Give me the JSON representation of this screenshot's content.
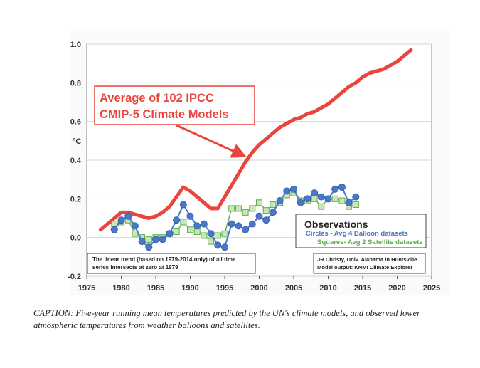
{
  "chart_data": {
    "type": "line",
    "ylabel": "°C",
    "xlim": [
      1975,
      2025
    ],
    "ylim": [
      -0.2,
      1.0
    ],
    "x_ticks": [
      1975,
      1980,
      1985,
      1990,
      1995,
      2000,
      2005,
      2010,
      2015,
      2020,
      2025
    ],
    "y_ticks": [
      -0.2,
      0.0,
      0.2,
      0.4,
      0.6,
      0.8,
      1.0
    ],
    "y_tick_labels": [
      "-0.2",
      "0.0",
      "0.2",
      "0.4",
      "0.6",
      "0.8",
      "1.0"
    ],
    "grid": true,
    "series": [
      {
        "name": "Average of 102 IPCC CMIP-5 Climate Models",
        "color": "#e8453c",
        "x": [
          1977,
          1978,
          1979,
          1980,
          1981,
          1982,
          1983,
          1984,
          1985,
          1986,
          1987,
          1988,
          1989,
          1990,
          1991,
          1992,
          1993,
          1994,
          1995,
          1996,
          1997,
          1998,
          1999,
          2000,
          2001,
          2002,
          2003,
          2004,
          2005,
          2006,
          2007,
          2008,
          2009,
          2010,
          2011,
          2012,
          2013,
          2014,
          2015,
          2016,
          2017,
          2018,
          2019,
          2020,
          2021,
          2022
        ],
        "values": [
          0.04,
          0.07,
          0.1,
          0.13,
          0.13,
          0.12,
          0.11,
          0.1,
          0.11,
          0.13,
          0.16,
          0.21,
          0.26,
          0.24,
          0.21,
          0.18,
          0.15,
          0.15,
          0.21,
          0.27,
          0.33,
          0.39,
          0.44,
          0.48,
          0.51,
          0.54,
          0.57,
          0.59,
          0.61,
          0.62,
          0.64,
          0.65,
          0.67,
          0.69,
          0.72,
          0.75,
          0.78,
          0.8,
          0.83,
          0.85,
          0.86,
          0.87,
          0.89,
          0.91,
          0.94,
          0.97
        ]
      },
      {
        "name": "Circles - Avg 4 Balloon datasets",
        "color": "#4a78c8",
        "x": [
          1979,
          1980,
          1981,
          1982,
          1983,
          1984,
          1985,
          1986,
          1987,
          1988,
          1989,
          1990,
          1991,
          1992,
          1993,
          1994,
          1995,
          1996,
          1997,
          1998,
          1999,
          2000,
          2001,
          2002,
          2003,
          2004,
          2005,
          2006,
          2007,
          2008,
          2009,
          2010,
          2011,
          2012,
          2013,
          2014
        ],
        "values": [
          0.04,
          0.09,
          0.11,
          0.06,
          -0.02,
          -0.05,
          -0.01,
          -0.01,
          0.02,
          0.09,
          0.17,
          0.11,
          0.06,
          0.07,
          0.02,
          -0.04,
          -0.05,
          0.07,
          0.06,
          0.04,
          0.07,
          0.11,
          0.09,
          0.13,
          0.19,
          0.24,
          0.25,
          0.18,
          0.2,
          0.23,
          0.21,
          0.2,
          0.25,
          0.26,
          0.18,
          0.21
        ]
      },
      {
        "name": "Squares- Avg 2 Satellite datasets",
        "color": "#5fb04a",
        "x": [
          1979,
          1980,
          1981,
          1982,
          1983,
          1984,
          1985,
          1986,
          1987,
          1988,
          1989,
          1990,
          1991,
          1992,
          1993,
          1994,
          1995,
          1996,
          1997,
          1998,
          1999,
          2000,
          2001,
          2002,
          2003,
          2004,
          2005,
          2006,
          2007,
          2008,
          2009,
          2010,
          2011,
          2012,
          2013,
          2014
        ],
        "values": [
          0.07,
          0.08,
          0.09,
          0.02,
          0.0,
          -0.01,
          0.0,
          0.0,
          0.02,
          0.03,
          0.08,
          0.04,
          0.03,
          0.01,
          -0.02,
          0.01,
          0.02,
          0.15,
          0.15,
          0.13,
          0.15,
          0.18,
          0.14,
          0.17,
          0.18,
          0.22,
          0.23,
          0.19,
          0.19,
          0.2,
          0.16,
          0.2,
          0.2,
          0.19,
          0.16,
          0.17
        ]
      }
    ],
    "annotation_main": [
      "Average of 102 IPCC",
      "CMIP-5 Climate Models"
    ],
    "legend_title": "Observations",
    "legend_circles": "Circles - Avg 4 Balloon datasets",
    "legend_squares": "Squares- Avg 2 Satellite datasets",
    "note_trend": [
      "The linear trend (based on 1979-2014 only) of all time",
      "series intersects at zero at 1979"
    ],
    "credit": [
      "JR Christy, Univ. Alabama in Huntsville",
      "Model output: KNMI Climate Explorer"
    ]
  },
  "caption": "CAPTION: Five-year running mean temperatures predicted by the UN's climate models, and observed lower atmospheric temperatures from weather balloons and satellites.",
  "colors": {
    "model": "#e8453c",
    "balloon": "#4a78c8",
    "satellite": "#5fb04a",
    "satellite_fill": "#c9e6b6"
  }
}
